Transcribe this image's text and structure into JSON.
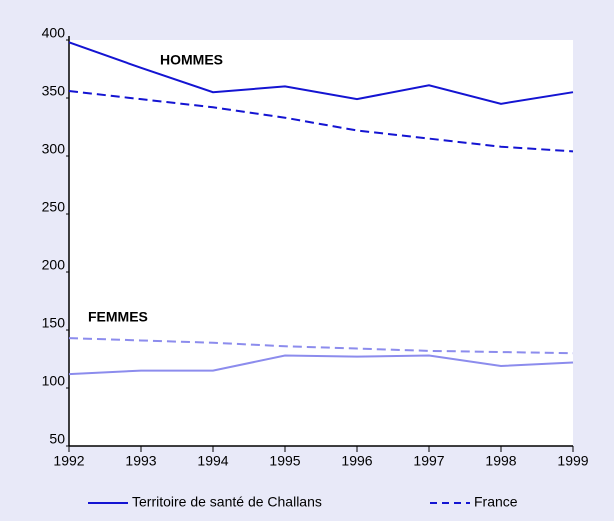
{
  "chart_data": {
    "type": "line",
    "x": [
      1992,
      1993,
      1994,
      1995,
      1996,
      1997,
      1998,
      1999
    ],
    "xlim": [
      1992,
      1999
    ],
    "xticks": [
      1992,
      1993,
      1994,
      1995,
      1996,
      1997,
      1998,
      1999
    ],
    "ylim": [
      50,
      400
    ],
    "yticks": [
      50,
      100,
      150,
      200,
      250,
      300,
      350,
      400
    ],
    "grid": false,
    "annotations": [
      "HOMMES",
      "FEMMES"
    ],
    "series": [
      {
        "name": "Territoire de santé de Challans",
        "color": "#1414d2",
        "dashed": false,
        "values": [
          398,
          376,
          355,
          360,
          349,
          361,
          345,
          355
        ]
      },
      {
        "name": "France",
        "color": "#1414d2",
        "dashed": true,
        "values": [
          356,
          349,
          342,
          333,
          322,
          315,
          308,
          304
        ]
      },
      {
        "name": "Territoire de santé de Challans",
        "color": "#8c8ced",
        "dashed": false,
        "values": [
          112,
          115,
          115,
          128,
          127,
          128,
          119,
          122
        ]
      },
      {
        "name": "France",
        "color": "#8c8ced",
        "dashed": true,
        "values": [
          143,
          141,
          139,
          136,
          134,
          132,
          131,
          130
        ]
      }
    ]
  }
}
